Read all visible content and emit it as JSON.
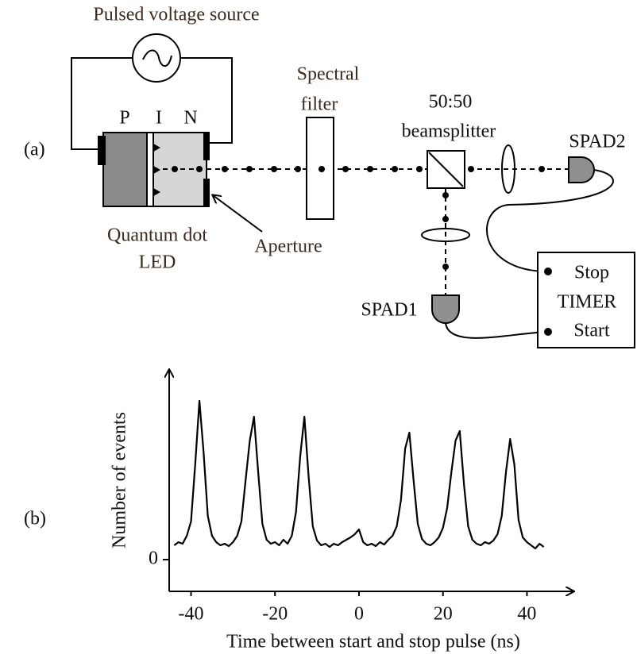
{
  "diagram": {
    "panel_a": "(a)",
    "panel_b": "(b)",
    "source": "Pulsed voltage source",
    "p": "P",
    "i": "I",
    "n": "N",
    "led": [
      "Quantum dot",
      "LED"
    ],
    "aperture": "Aperture",
    "spectral_filter": [
      "Spectral",
      "filter"
    ],
    "beamsplitter": [
      "50:50",
      "beamsplitter"
    ],
    "spad2": "SPAD2",
    "spad1": "SPAD1",
    "timer": [
      "Stop",
      "TIMER",
      "Start"
    ]
  },
  "chart_data": {
    "type": "line",
    "xlabel": "Time between start and stop pulse (ns)",
    "ylabel": "Number of events",
    "color": "#000000",
    "x": [
      -44,
      -43,
      -42,
      -41,
      -40,
      -39,
      -38,
      -37,
      -36,
      -35,
      -34,
      -33,
      -32,
      -31,
      -30,
      -29,
      -28,
      -27,
      -26,
      -25,
      -24,
      -23,
      -22,
      -21,
      -20,
      -19,
      -18,
      -17,
      -16,
      -15,
      -14,
      -13,
      -12,
      -11,
      -10,
      -9,
      -8,
      -7,
      -6,
      -5,
      -4,
      -3,
      -2,
      -1,
      0,
      1,
      2,
      3,
      4,
      5,
      6,
      7,
      8,
      9,
      10,
      11,
      12,
      13,
      14,
      15,
      16,
      17,
      18,
      19,
      20,
      21,
      22,
      23,
      24,
      25,
      26,
      27,
      28,
      29,
      30,
      31,
      32,
      33,
      34,
      35,
      36,
      37,
      38,
      39,
      40,
      41,
      42,
      43,
      44
    ],
    "values": [
      18,
      22,
      20,
      30,
      48,
      120,
      200,
      135,
      55,
      30,
      22,
      18,
      20,
      17,
      22,
      30,
      48,
      100,
      150,
      180,
      110,
      45,
      25,
      20,
      22,
      18,
      25,
      20,
      30,
      60,
      130,
      180,
      105,
      42,
      24,
      18,
      20,
      16,
      20,
      18,
      22,
      25,
      28,
      32,
      38,
      22,
      18,
      20,
      17,
      22,
      19,
      25,
      30,
      42,
      75,
      140,
      160,
      100,
      45,
      26,
      20,
      18,
      22,
      28,
      40,
      65,
      110,
      150,
      162,
      95,
      42,
      25,
      20,
      18,
      22,
      20,
      24,
      32,
      55,
      110,
      152,
      120,
      50,
      28,
      22,
      18,
      14,
      20,
      16
    ],
    "xlim": [
      -45.2,
      50.7
    ],
    "xticks": [
      -40,
      -20,
      0,
      20,
      40
    ],
    "ylim": [
      -40,
      240
    ],
    "yticks": [
      0
    ]
  }
}
